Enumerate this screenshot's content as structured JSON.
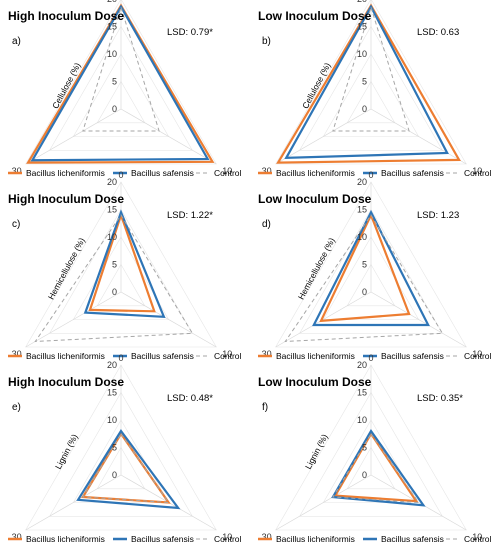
{
  "chart_data": [
    {
      "type": "radar",
      "letter": "a)",
      "title": "High Inoculum Dose",
      "lsd": "LSD: 0.79*",
      "axis_label": "Cellulose (%)",
      "axes": [
        "0",
        "10",
        "30"
      ],
      "rlim": [
        0,
        20
      ],
      "ticks": [
        "20",
        "15",
        "10",
        "5",
        "0"
      ],
      "series": [
        {
          "name": "Bacillus licheniformis",
          "color": "#ED7D31",
          "dash": "solid",
          "values": [
            18.8,
            19.2,
            19.5
          ]
        },
        {
          "name": "Bacillus safensis",
          "color": "#2E75B6",
          "dash": "solid",
          "values": [
            18.6,
            18.2,
            18.6
          ]
        },
        {
          "name": "Control",
          "color": "#A6A6A6",
          "dash": "dashed",
          "values": [
            18.5,
            8.0,
            8.0
          ]
        }
      ]
    },
    {
      "type": "radar",
      "letter": "b)",
      "title": "Low Inoculum Dose",
      "lsd": "LSD: 0.63",
      "axis_label": "Cellulose (%)",
      "axes": [
        "0",
        "10",
        "30"
      ],
      "rlim": [
        0,
        20
      ],
      "ticks": [
        "20",
        "15",
        "10",
        "5",
        "0"
      ],
      "series": [
        {
          "name": "Bacillus licheniformis",
          "color": "#ED7D31",
          "dash": "solid",
          "values": [
            18.8,
            18.5,
            19.5
          ]
        },
        {
          "name": "Bacillus safensis",
          "color": "#2E75B6",
          "dash": "solid",
          "values": [
            18.6,
            16.0,
            17.8
          ]
        },
        {
          "name": "Control",
          "color": "#A6A6A6",
          "dash": "dashed",
          "values": [
            18.5,
            8.0,
            8.0
          ]
        }
      ]
    },
    {
      "type": "radar",
      "letter": "c)",
      "title": "High Inoculum Dose",
      "lsd": "LSD: 1.22*",
      "axis_label": "Hemicellulose (%)",
      "axes": [
        "0",
        "10",
        "30"
      ],
      "rlim": [
        0,
        20
      ],
      "ticks": [
        "20",
        "15",
        "10",
        "5",
        "0"
      ],
      "series": [
        {
          "name": "Bacillus licheniformis",
          "color": "#ED7D31",
          "dash": "solid",
          "values": [
            14.0,
            7.0,
            6.5
          ]
        },
        {
          "name": "Bacillus safensis",
          "color": "#2E75B6",
          "dash": "solid",
          "values": [
            14.5,
            9.0,
            7.5
          ]
        },
        {
          "name": "Control",
          "color": "#A6A6A6",
          "dash": "dashed",
          "values": [
            14.0,
            15.0,
            18.0
          ]
        }
      ]
    },
    {
      "type": "radar",
      "letter": "d)",
      "title": "Low Inoculum Dose",
      "lsd": "LSD: 1.23",
      "axis_label": "Hemicellulose (%)",
      "axes": [
        "0",
        "10",
        "30"
      ],
      "rlim": [
        0,
        20
      ],
      "ticks": [
        "20",
        "15",
        "10",
        "5",
        "0"
      ],
      "series": [
        {
          "name": "Bacillus licheniformis",
          "color": "#ED7D31",
          "dash": "solid",
          "values": [
            14.0,
            8.0,
            10.5
          ]
        },
        {
          "name": "Bacillus safensis",
          "color": "#2E75B6",
          "dash": "solid",
          "values": [
            14.5,
            12.0,
            12.0
          ]
        },
        {
          "name": "Control",
          "color": "#A6A6A6",
          "dash": "dashed",
          "values": [
            14.0,
            15.0,
            18.0
          ]
        }
      ]
    },
    {
      "type": "radar",
      "letter": "e)",
      "title": "High Inoculum Dose",
      "lsd": "LSD: 0.48*",
      "axis_label": "Lignin (%)",
      "axes": [
        "0",
        "10",
        "30"
      ],
      "rlim": [
        0,
        20
      ],
      "ticks": [
        "20",
        "15",
        "10",
        "5",
        "0"
      ],
      "series": [
        {
          "name": "Bacillus licheniformis",
          "color": "#ED7D31",
          "dash": "solid",
          "values": [
            7.5,
            10.0,
            8.0
          ]
        },
        {
          "name": "Bacillus safensis",
          "color": "#2E75B6",
          "dash": "solid",
          "values": [
            8.0,
            12.0,
            9.0
          ]
        },
        {
          "name": "Control",
          "color": "#A6A6A6",
          "dash": "dashed",
          "values": [
            7.5,
            10.0,
            8.0
          ]
        }
      ]
    },
    {
      "type": "radar",
      "letter": "f)",
      "title": "Low Inoculum Dose",
      "lsd": "LSD: 0.35*",
      "axis_label": "Lignin (%)",
      "axes": [
        "0",
        "10",
        "30"
      ],
      "rlim": [
        0,
        20
      ],
      "ticks": [
        "20",
        "15",
        "10",
        "5",
        "0"
      ],
      "series": [
        {
          "name": "Bacillus licheniformis",
          "color": "#ED7D31",
          "dash": "solid",
          "values": [
            7.5,
            9.5,
            7.5
          ]
        },
        {
          "name": "Bacillus safensis",
          "color": "#2E75B6",
          "dash": "solid",
          "values": [
            8.0,
            11.0,
            8.0
          ]
        },
        {
          "name": "Control",
          "color": "#A6A6A6",
          "dash": "dashed",
          "values": [
            7.5,
            10.0,
            8.0
          ]
        }
      ]
    }
  ]
}
